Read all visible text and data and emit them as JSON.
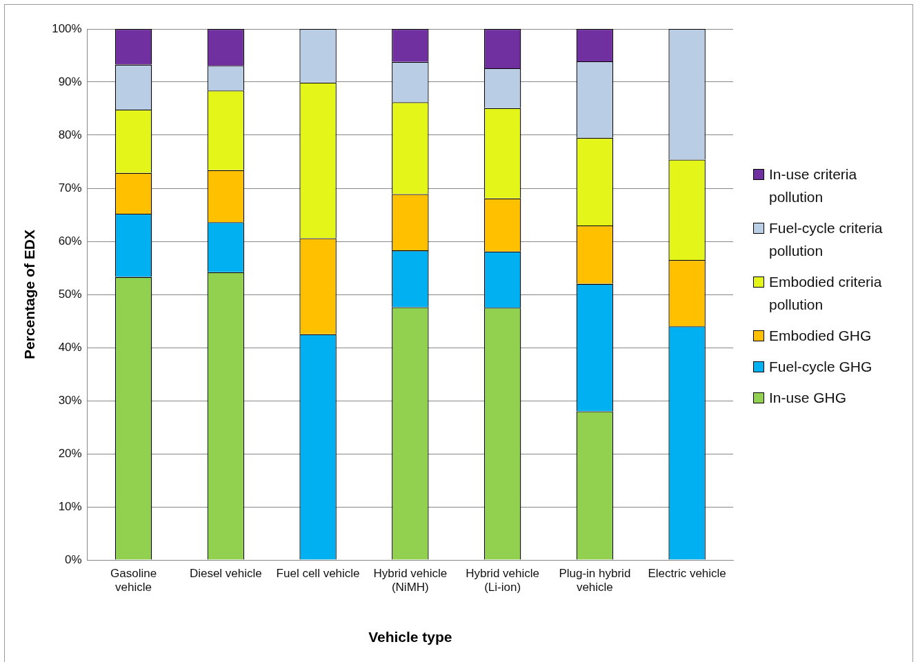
{
  "chart_data": {
    "type": "bar",
    "stacked": true,
    "xlabel": "Vehicle type",
    "ylabel": "Percentage of EDX",
    "categories": [
      "Gasoline vehicle",
      "Diesel vehicle",
      "Fuel cell vehicle",
      "Hybrid vehicle (NiMH)",
      "Hybrid vehicle (Li-ion)",
      "Plug-in hybrid vehicle",
      "Electric vehicle"
    ],
    "series": [
      {
        "name": "In-use GHG",
        "color": "#92d050",
        "values": [
          53.3,
          54.2,
          0,
          47.6,
          47.5,
          28.0,
          0
        ]
      },
      {
        "name": "Fuel-cycle GHG",
        "color": "#00b0f0",
        "values": [
          11.9,
          9.4,
          42.5,
          10.7,
          10.6,
          24.0,
          44.0
        ]
      },
      {
        "name": "Embodied GHG",
        "color": "#ffc000",
        "values": [
          7.7,
          9.8,
          18.1,
          10.6,
          10.0,
          11.0,
          12.5
        ]
      },
      {
        "name": "Embodied criteria pollution",
        "color": "#e3f519",
        "values": [
          11.9,
          15.0,
          29.3,
          17.3,
          17.0,
          16.5,
          18.9
        ]
      },
      {
        "name": "Fuel-cycle criteria pollution",
        "color": "#b9cde5",
        "values": [
          8.5,
          4.7,
          10.1,
          7.6,
          7.5,
          14.4,
          24.6
        ]
      },
      {
        "name": "In-use criteria pollution",
        "color": "#7030a0",
        "values": [
          6.7,
          6.9,
          0,
          6.2,
          7.4,
          6.1,
          0
        ]
      }
    ],
    "ylim": [
      0,
      100
    ],
    "yticks": [
      {
        "value": 0,
        "label": "0%"
      },
      {
        "value": 10,
        "label": "10%"
      },
      {
        "value": 20,
        "label": "20%"
      },
      {
        "value": 30,
        "label": "30%"
      },
      {
        "value": 40,
        "label": "40%"
      },
      {
        "value": 50,
        "label": "50%"
      },
      {
        "value": 60,
        "label": "60%"
      },
      {
        "value": 70,
        "label": "70%"
      },
      {
        "value": 80,
        "label": "80%"
      },
      {
        "value": 90,
        "label": "90%"
      },
      {
        "value": 100,
        "label": "100%"
      }
    ],
    "grid": "y",
    "legend": "right"
  }
}
